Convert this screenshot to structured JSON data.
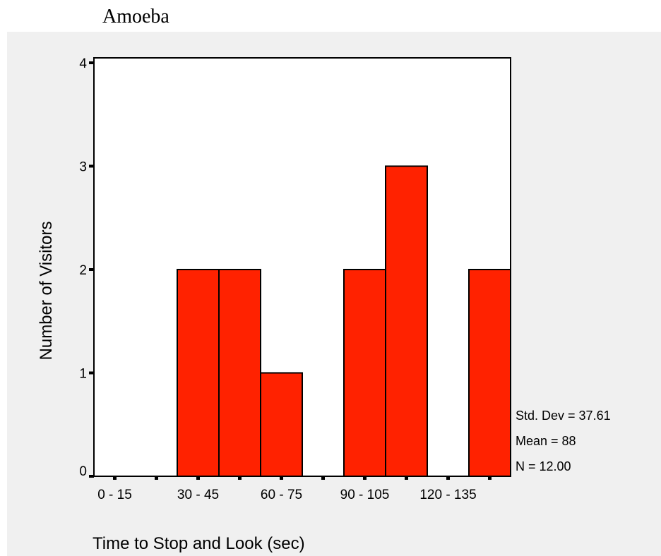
{
  "chart_data": {
    "type": "bar",
    "title": "Amoeba",
    "xlabel": "Time to Stop and Look (sec)",
    "ylabel": "Number of Visitors",
    "bins": [
      "0 - 15",
      "15 - 30",
      "30 - 45",
      "45 - 60",
      "60 - 75",
      "75 - 90",
      "90 - 105",
      "105 - 120",
      "120 - 135",
      "135 - 150"
    ],
    "values": [
      0,
      0,
      2,
      2,
      1,
      0,
      2,
      3,
      0,
      2
    ],
    "x_tick_labels": [
      "0 - 15",
      "30 - 45",
      "60 - 75",
      "90 - 105",
      "120 - 135"
    ],
    "x_tick_label_bins": [
      0,
      2,
      4,
      6,
      8
    ],
    "y_ticks": [
      0,
      1,
      2,
      3,
      4
    ],
    "ylim": [
      0,
      4
    ],
    "grid": false,
    "bar_color": "#ff2200",
    "stats": [
      "Std. Dev = 37.61",
      "Mean = 88",
      "N = 12.00"
    ]
  }
}
